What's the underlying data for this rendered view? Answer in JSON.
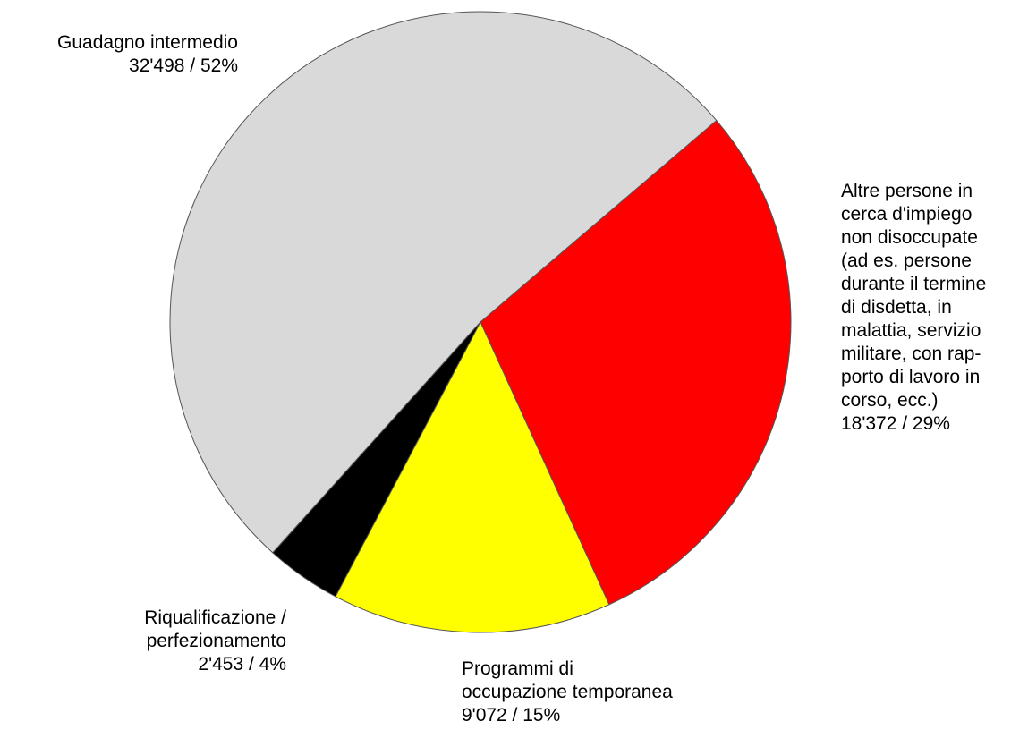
{
  "chart_data": {
    "type": "pie",
    "categories": [
      "Guadagno intermedio",
      "Altre persone in\ncerca d'impiego\nnon disoccupate\n(ad es. persone\ndurante il termine\ndi disdetta, in\nmalattia, servizio\nmilitare, con rap-\nporto di lavoro in\ncorso, ecc.)",
      "Programmi di\noccupazione temporanea",
      "Riqualificazione /\nperfezionamento"
    ],
    "values": [
      32498,
      18372,
      9072,
      2453
    ],
    "value_labels": [
      "32'498 / 52%",
      "18'372 / 29%",
      "9'072 / 15%",
      "2'453 / 4%"
    ],
    "colors": [
      "#d9d9d9",
      "#ff0000",
      "#ffff00",
      "#000000"
    ]
  }
}
